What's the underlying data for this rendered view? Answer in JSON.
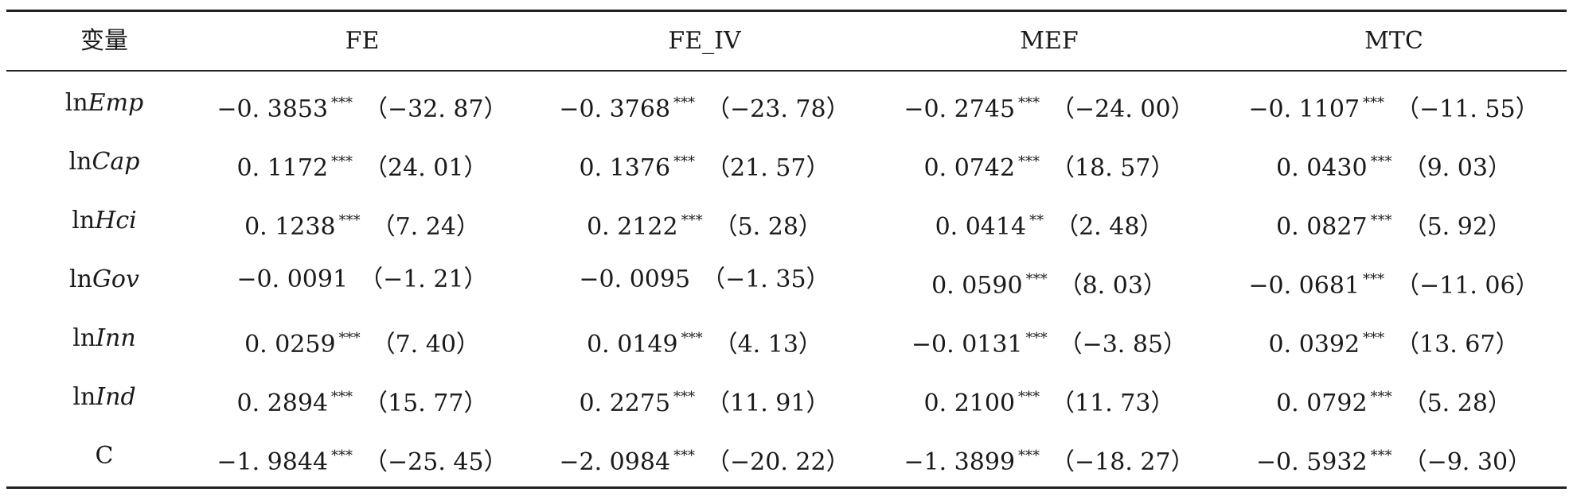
{
  "table": {
    "headers": [
      "变量",
      "FE",
      "FE_IV",
      "MEF",
      "MTC"
    ],
    "rows": [
      {
        "var_prefix": "ln",
        "var_name": "Emp",
        "cells": [
          {
            "coef": "−0. 3853",
            "sig": "***",
            "t": "（−32. 87）"
          },
          {
            "coef": "−0. 3768",
            "sig": "***",
            "t": "（−23. 78）"
          },
          {
            "coef": "−0. 2745",
            "sig": "***",
            "t": "（−24. 00）"
          },
          {
            "coef": "−0. 1107",
            "sig": "***",
            "t": "（−11. 55）"
          }
        ]
      },
      {
        "var_prefix": "ln",
        "var_name": "Cap",
        "cells": [
          {
            "coef": "0. 1172",
            "sig": "***",
            "t": "（24. 01）"
          },
          {
            "coef": "0. 1376",
            "sig": "***",
            "t": "（21. 57）"
          },
          {
            "coef": "0. 0742",
            "sig": "***",
            "t": "（18. 57）"
          },
          {
            "coef": "0. 0430",
            "sig": "***",
            "t": "（9. 03）"
          }
        ]
      },
      {
        "var_prefix": "ln",
        "var_name": "Hci",
        "cells": [
          {
            "coef": "0. 1238",
            "sig": "***",
            "t": "（7. 24）"
          },
          {
            "coef": "0. 2122",
            "sig": "***",
            "t": "（5. 28）"
          },
          {
            "coef": "0. 0414",
            "sig": "**",
            "t": "（2. 48）"
          },
          {
            "coef": "0. 0827",
            "sig": "***",
            "t": "（5. 92）"
          }
        ]
      },
      {
        "var_prefix": "ln",
        "var_name": "Gov",
        "cells": [
          {
            "coef": "−0. 0091",
            "sig": "",
            "t": "（−1. 21）"
          },
          {
            "coef": "−0. 0095",
            "sig": "",
            "t": "（−1. 35）"
          },
          {
            "coef": "0. 0590",
            "sig": "***",
            "t": "（8. 03）"
          },
          {
            "coef": "−0. 0681",
            "sig": "***",
            "t": "（−11. 06）"
          }
        ]
      },
      {
        "var_prefix": "ln",
        "var_name": "Inn",
        "cells": [
          {
            "coef": "0. 0259",
            "sig": "***",
            "t": "（7. 40）"
          },
          {
            "coef": "0. 0149",
            "sig": "***",
            "t": "（4. 13）"
          },
          {
            "coef": "−0. 0131",
            "sig": "***",
            "t": "（−3. 85）"
          },
          {
            "coef": "0. 0392",
            "sig": "***",
            "t": "（13. 67）"
          }
        ]
      },
      {
        "var_prefix": "ln",
        "var_name": "Ind",
        "cells": [
          {
            "coef": "0. 2894",
            "sig": "***",
            "t": "（15. 77）"
          },
          {
            "coef": "0. 2275",
            "sig": "***",
            "t": "（11. 91）"
          },
          {
            "coef": "0. 2100",
            "sig": "***",
            "t": "（11. 73）"
          },
          {
            "coef": "0. 0792",
            "sig": "***",
            "t": "（5. 28）"
          }
        ]
      },
      {
        "var_prefix": "",
        "var_name": "C",
        "cells": [
          {
            "coef": "−1. 9844",
            "sig": "***",
            "t": "（−25. 45）"
          },
          {
            "coef": "−2. 0984",
            "sig": "***",
            "t": "（−20. 22）"
          },
          {
            "coef": "−1. 3899",
            "sig": "***",
            "t": "（−18. 27）"
          },
          {
            "coef": "−0. 5932",
            "sig": "***",
            "t": "（−9. 30）"
          }
        ]
      }
    ]
  }
}
